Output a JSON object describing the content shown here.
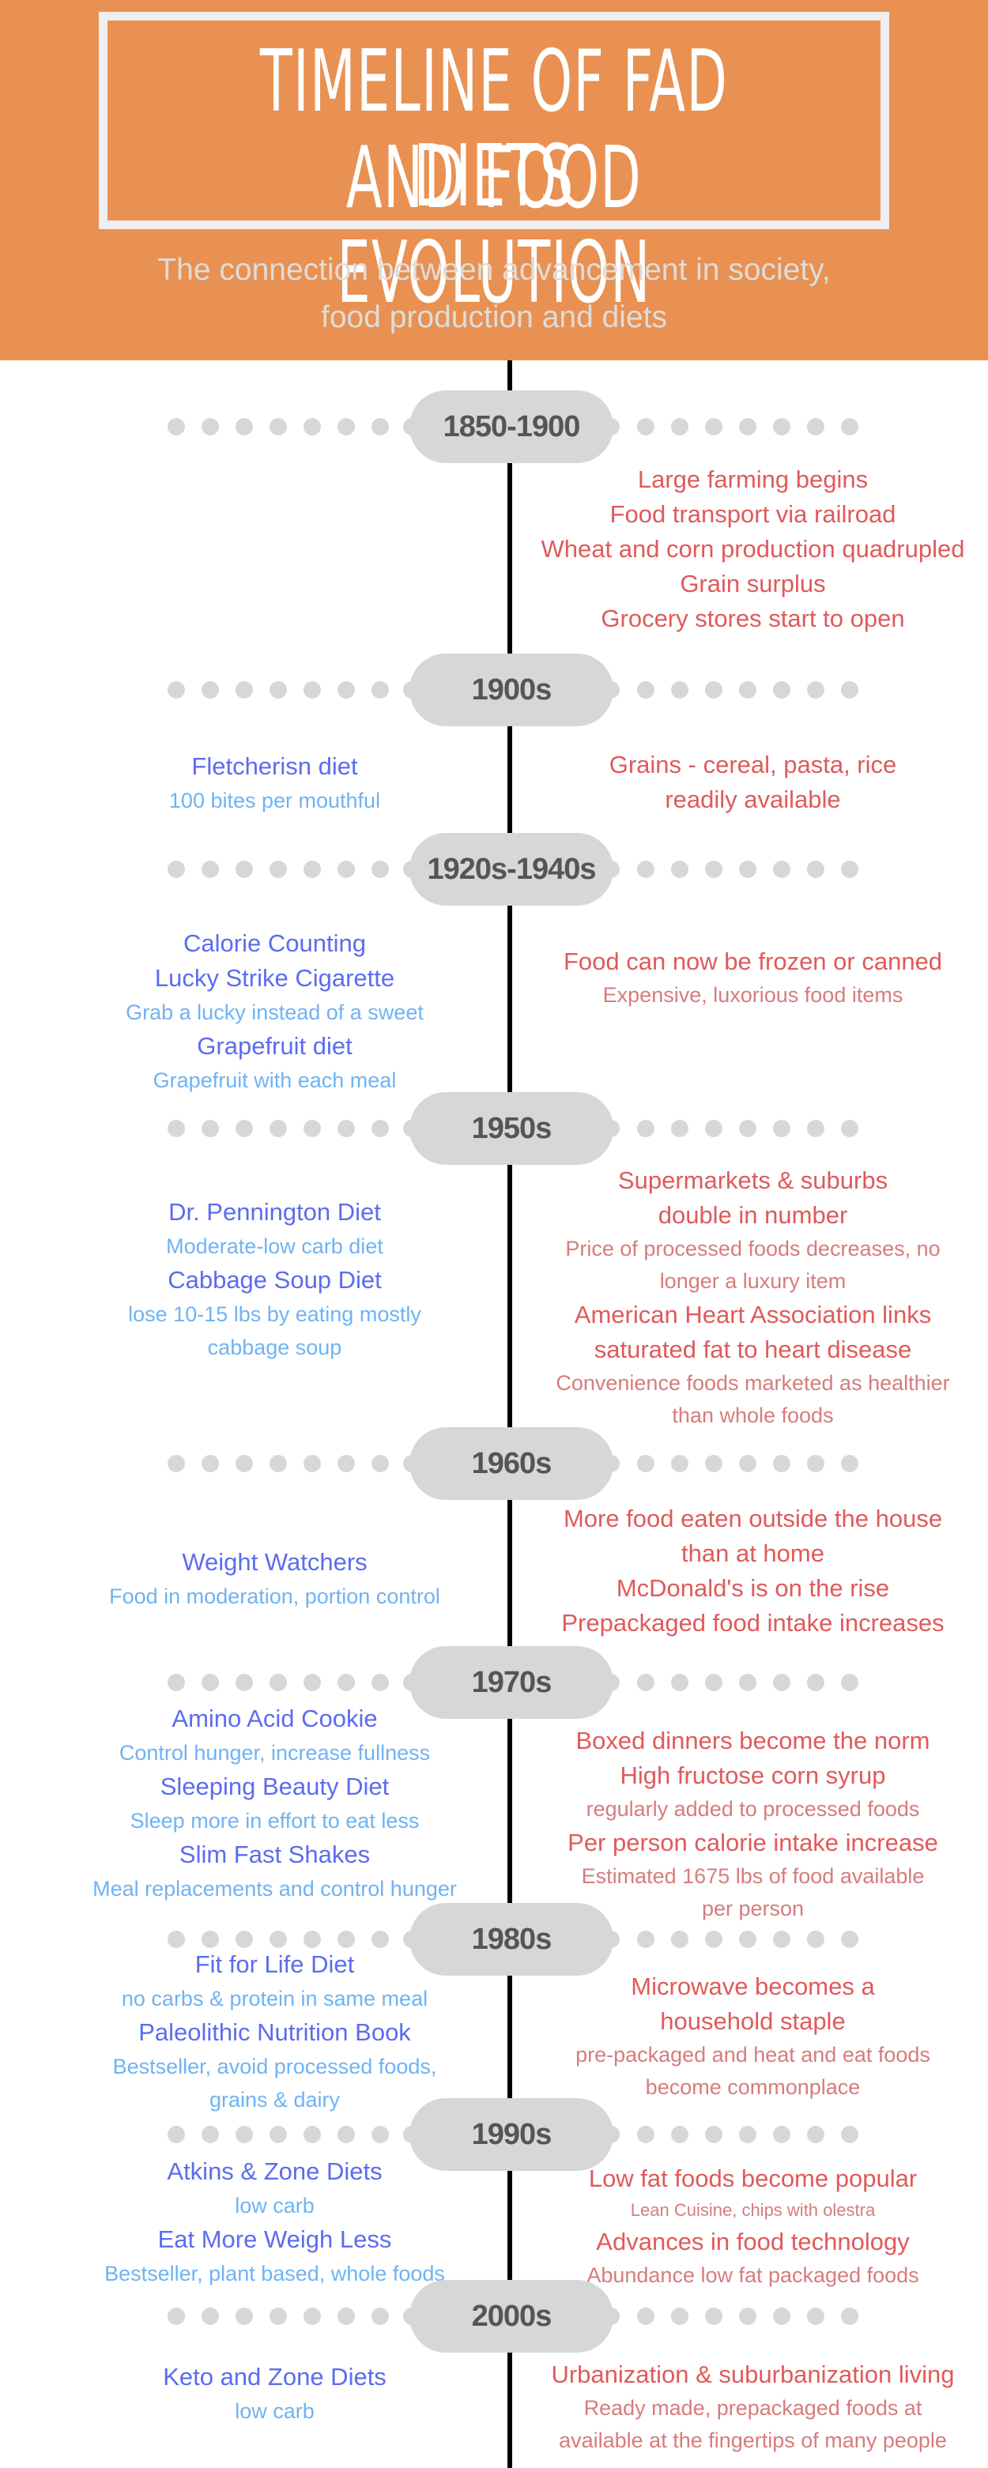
{
  "header": {
    "title_line1": "TIMELINE OF FAD DIETS",
    "title_line2": "AND FOOD EVOLUTION",
    "subtitle_line1": "The connection between advancement in society,",
    "subtitle_line2": "food production and diets",
    "background_color": "#E89153"
  },
  "colors": {
    "diet_title": "#5B6CF0",
    "diet_subtitle": "#6FB3F2",
    "food_title": "#E05A5A",
    "food_subtitle": "#D77C7C",
    "era_pill": "#D7D7D7",
    "era_text": "#555555",
    "timeline_line": "#000000"
  },
  "eras": [
    {
      "label": "1850-1900",
      "diets": [],
      "food": [
        {
          "type": "title",
          "text": "Large farming begins"
        },
        {
          "type": "title",
          "text": "Food transport via railroad"
        },
        {
          "type": "title",
          "text": "Wheat and corn production quadrupled"
        },
        {
          "type": "title",
          "text": "Grain surplus"
        },
        {
          "type": "title",
          "text": "Grocery stores start to open"
        }
      ]
    },
    {
      "label": "1900s",
      "diets": [
        {
          "type": "title",
          "text": "Fletcherisn diet"
        },
        {
          "type": "sub",
          "text": "100 bites per mouthful"
        }
      ],
      "food": [
        {
          "type": "title",
          "text": "Grains - cereal, pasta, rice"
        },
        {
          "type": "title",
          "text": "readily available"
        }
      ]
    },
    {
      "label": "1920s-1940s",
      "diets": [
        {
          "type": "title",
          "text": "Calorie Counting"
        },
        {
          "type": "title",
          "text": "Lucky Strike Cigarette"
        },
        {
          "type": "sub",
          "text": "Grab a lucky instead of a sweet"
        },
        {
          "type": "title",
          "text": "Grapefruit diet"
        },
        {
          "type": "sub",
          "text": "Grapefruit with each meal"
        }
      ],
      "food": [
        {
          "type": "title",
          "text": "Food can now be frozen or canned"
        },
        {
          "type": "sub",
          "text": "Expensive, luxorious food items"
        }
      ]
    },
    {
      "label": "1950s",
      "diets": [
        {
          "type": "title",
          "text": "Dr. Pennington Diet"
        },
        {
          "type": "sub",
          "text": "Moderate-low carb diet"
        },
        {
          "type": "title",
          "text": "Cabbage Soup Diet"
        },
        {
          "type": "sub",
          "text": "lose 10-15 lbs by eating mostly"
        },
        {
          "type": "sub",
          "text": "cabbage soup"
        }
      ],
      "food": [
        {
          "type": "title",
          "text": "Supermarkets & suburbs"
        },
        {
          "type": "title",
          "text": "double in number"
        },
        {
          "type": "sub",
          "text": "Price of processed foods decreases, no"
        },
        {
          "type": "sub",
          "text": "longer a luxury item"
        },
        {
          "type": "title",
          "text": "American Heart Association links"
        },
        {
          "type": "title",
          "text": "saturated fat to heart disease"
        },
        {
          "type": "sub",
          "text": "Convenience foods marketed as healthier"
        },
        {
          "type": "sub",
          "text": "than whole foods"
        }
      ]
    },
    {
      "label": "1960s",
      "diets": [
        {
          "type": "title",
          "text": "Weight Watchers"
        },
        {
          "type": "sub",
          "text": "Food in moderation, portion control"
        }
      ],
      "food": [
        {
          "type": "title",
          "text": "More food eaten outside the house"
        },
        {
          "type": "title",
          "text": "than at home"
        },
        {
          "type": "title",
          "text": "McDonald's is on the rise"
        },
        {
          "type": "title",
          "text": "Prepackaged food intake increases"
        }
      ]
    },
    {
      "label": "1970s",
      "diets": [
        {
          "type": "title",
          "text": "Amino Acid Cookie"
        },
        {
          "type": "sub",
          "text": "Control hunger, increase fullness"
        },
        {
          "type": "title",
          "text": "Sleeping Beauty Diet"
        },
        {
          "type": "sub",
          "text": "Sleep more in effort to eat less"
        },
        {
          "type": "title",
          "text": "Slim Fast Shakes"
        },
        {
          "type": "sub",
          "text": "Meal replacements and control hunger"
        }
      ],
      "food": [
        {
          "type": "title",
          "text": "Boxed dinners become the norm"
        },
        {
          "type": "title",
          "text": "High fructose corn syrup"
        },
        {
          "type": "sub",
          "text": "regularly added to processed foods"
        },
        {
          "type": "title",
          "text": "Per person calorie intake increase"
        },
        {
          "type": "sub",
          "text": "Estimated 1675 lbs of food available"
        },
        {
          "type": "sub",
          "text": "per person"
        }
      ]
    },
    {
      "label": "1980s",
      "diets": [
        {
          "type": "title",
          "text": "Fit for Life Diet"
        },
        {
          "type": "sub",
          "text": "no carbs & protein in same meal"
        },
        {
          "type": "title",
          "text": "Paleolithic Nutrition Book"
        },
        {
          "type": "sub",
          "text": "Bestseller, avoid processed foods,"
        },
        {
          "type": "sub",
          "text": "grains & dairy"
        }
      ],
      "food": [
        {
          "type": "title",
          "text": "Microwave becomes a"
        },
        {
          "type": "title",
          "text": "household staple"
        },
        {
          "type": "sub",
          "text": "pre-packaged and heat and eat foods"
        },
        {
          "type": "sub",
          "text": "become commonplace"
        }
      ]
    },
    {
      "label": "1990s",
      "diets": [
        {
          "type": "title",
          "text": "Atkins & Zone Diets"
        },
        {
          "type": "sub",
          "text": "low carb"
        },
        {
          "type": "title",
          "text": "Eat More Weigh Less"
        },
        {
          "type": "sub",
          "text": "Bestseller, plant based, whole foods"
        }
      ],
      "food": [
        {
          "type": "title",
          "text": "Low fat foods become popular"
        },
        {
          "type": "tiny",
          "text": "Lean Cuisine, chips with olestra"
        },
        {
          "type": "title",
          "text": "Advances in food technology"
        },
        {
          "type": "sub",
          "text": "Abundance low fat packaged foods"
        }
      ]
    },
    {
      "label": "2000s",
      "diets": [
        {
          "type": "title",
          "text": "Keto and Zone Diets"
        },
        {
          "type": "sub",
          "text": "low carb"
        }
      ],
      "food": [
        {
          "type": "title",
          "text": "Urbanization & suburbanization living"
        },
        {
          "type": "sub",
          "text": "Ready made, prepackaged foods at"
        },
        {
          "type": "sub",
          "text": "available at the fingertips of many people"
        }
      ]
    }
  ]
}
